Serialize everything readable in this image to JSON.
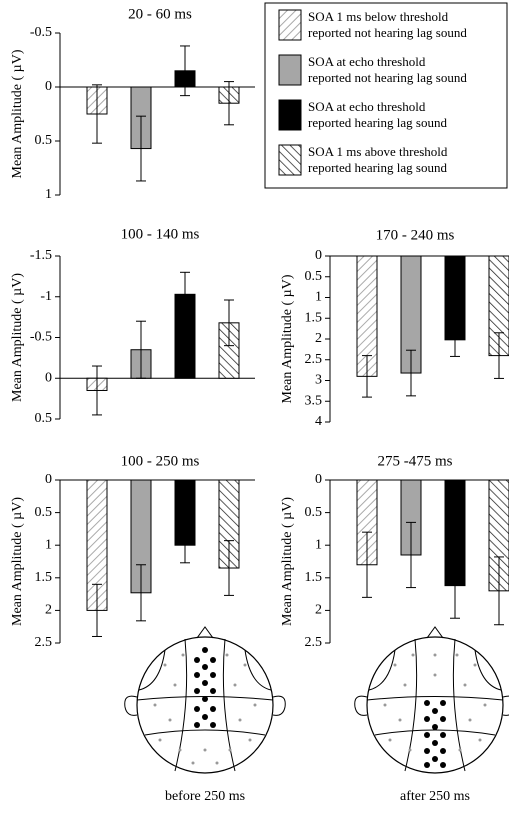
{
  "chart_data": [
    {
      "type": "bar",
      "title": "20 - 60 ms",
      "ylabel": "Mean Amplitude ( µV)",
      "ylim": [
        1,
        -0.5
      ],
      "yticks": [
        -0.5,
        0,
        0.5,
        1
      ],
      "values": [
        0.25,
        0.57,
        -0.15,
        0.15
      ],
      "errors": [
        0.27,
        0.3,
        0.23,
        0.2
      ]
    },
    {
      "type": "bar",
      "title": "100 - 140 ms",
      "ylabel": "Mean Amplitude ( µV)",
      "ylim": [
        0.5,
        -1.5
      ],
      "yticks": [
        -1.5,
        -1,
        -0.5,
        0,
        0.5
      ],
      "values": [
        0.15,
        -0.35,
        -1.03,
        -0.68
      ],
      "errors": [
        0.3,
        0.35,
        0.27,
        0.28
      ]
    },
    {
      "type": "bar",
      "title": "170 - 240 ms",
      "ylabel": "Mean Amplitude ( µV)",
      "ylim": [
        4,
        0
      ],
      "yticks": [
        0,
        0.5,
        1,
        1.5,
        2,
        2.5,
        3,
        3.5,
        4
      ],
      "values": [
        2.9,
        2.82,
        2.02,
        2.4
      ],
      "errors": [
        0.5,
        0.55,
        0.4,
        0.55
      ]
    },
    {
      "type": "bar",
      "title": "100 - 250 ms",
      "ylabel": "Mean Amplitude ( µV)",
      "ylim": [
        2.5,
        0
      ],
      "yticks": [
        0,
        0.5,
        1,
        1.5,
        2,
        2.5
      ],
      "values": [
        2.0,
        1.73,
        1.0,
        1.35
      ],
      "errors": [
        0.4,
        0.43,
        0.27,
        0.42
      ]
    },
    {
      "type": "bar",
      "title": "275 -475 ms",
      "ylabel": "Mean Amplitude ( µV)",
      "ylim": [
        2.5,
        0
      ],
      "yticks": [
        0,
        0.5,
        1,
        1.5,
        2,
        2.5
      ],
      "values": [
        1.3,
        1.15,
        1.62,
        1.7
      ],
      "errors": [
        0.5,
        0.5,
        0.5,
        0.52
      ]
    }
  ],
  "legend": {
    "items": [
      {
        "label": "SOA 1 ms below threshold",
        "sublabel": "reported not hearing lag sound",
        "fill": "hatch-light"
      },
      {
        "label": "SOA at echo threshold",
        "sublabel": "reported not hearing lag sound",
        "fill": "#a6a6a6"
      },
      {
        "label": "SOA at echo threshold",
        "sublabel": "reported hearing lag sound",
        "fill": "#000000"
      },
      {
        "label": "SOA 1 ms above threshold",
        "sublabel": "reported hearing lag sound",
        "fill": "hatch-dark"
      }
    ]
  },
  "head_maps": [
    {
      "label": "before 250 ms"
    },
    {
      "label": "after 250 ms"
    }
  ]
}
